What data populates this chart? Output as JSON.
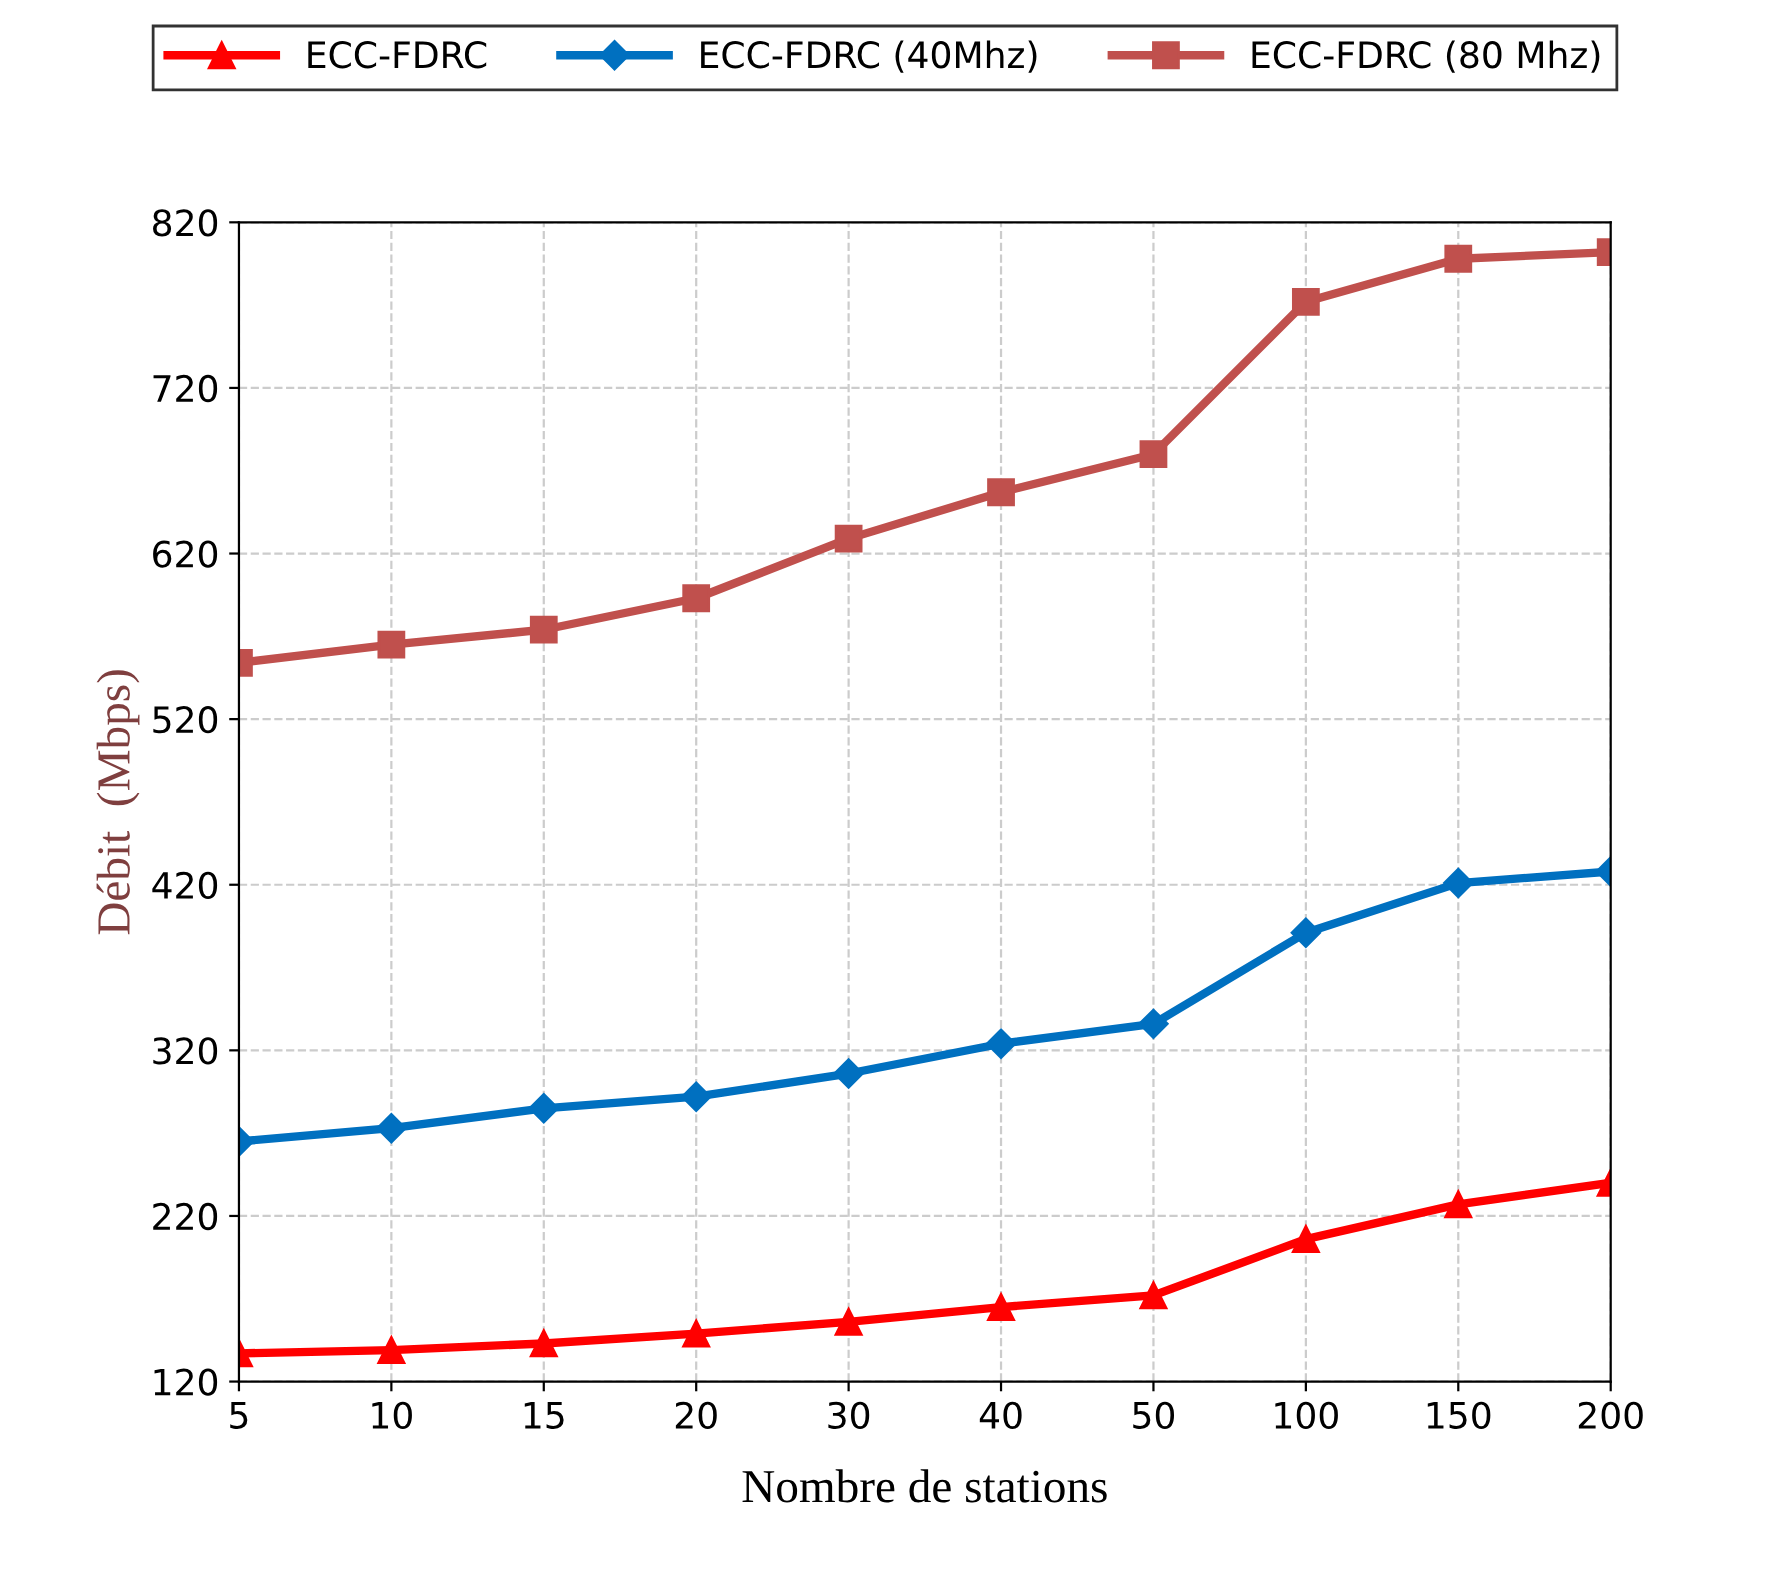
{
  "chart_data": {
    "type": "line",
    "xlabel": "Nombre de stations",
    "ylabel": "Débit  (Mbps)",
    "categories": [
      "5",
      "10",
      "15",
      "20",
      "30",
      "40",
      "50",
      "100",
      "150",
      "200"
    ],
    "series": [
      {
        "name": "ECC-FDRC",
        "color": "#ff0000",
        "marker": "triangle",
        "values": [
          137,
          139,
          143,
          149,
          156,
          165,
          172,
          206,
          227,
          240
        ]
      },
      {
        "name": "ECC-FDRC (40Mhz)",
        "color": "#0070c0",
        "marker": "diamond",
        "values": [
          265,
          273,
          285,
          292,
          306,
          324,
          336,
          391,
          421,
          428
        ]
      },
      {
        "name": "ECC-FDRC (80 Mhz)",
        "color": "#c0504d",
        "marker": "square",
        "values": [
          554,
          565,
          574,
          593,
          629,
          657,
          680,
          772,
          798,
          802
        ]
      }
    ],
    "ylim": [
      120,
      820
    ],
    "yticks": [
      120,
      220,
      320,
      420,
      520,
      620,
      720,
      820
    ],
    "grid": true,
    "legend": "top",
    "line_style": "solid"
  }
}
